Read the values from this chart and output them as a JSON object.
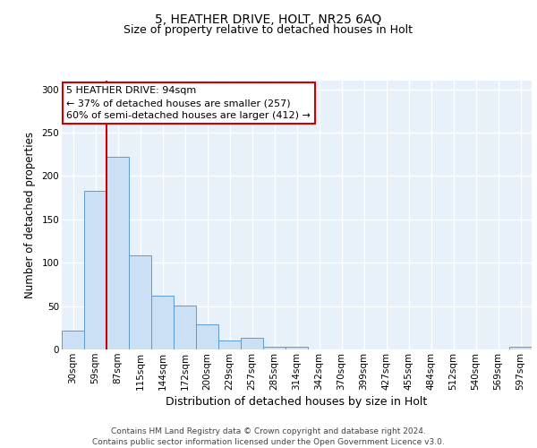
{
  "title1": "5, HEATHER DRIVE, HOLT, NR25 6AQ",
  "title2": "Size of property relative to detached houses in Holt",
  "xlabel": "Distribution of detached houses by size in Holt",
  "ylabel": "Number of detached properties",
  "bar_labels": [
    "30sqm",
    "59sqm",
    "87sqm",
    "115sqm",
    "144sqm",
    "172sqm",
    "200sqm",
    "229sqm",
    "257sqm",
    "285sqm",
    "314sqm",
    "342sqm",
    "370sqm",
    "399sqm",
    "427sqm",
    "455sqm",
    "484sqm",
    "512sqm",
    "540sqm",
    "569sqm",
    "597sqm"
  ],
  "bar_values": [
    22,
    183,
    222,
    108,
    62,
    51,
    29,
    10,
    13,
    3,
    3,
    0,
    0,
    0,
    0,
    0,
    0,
    0,
    0,
    0,
    3
  ],
  "bar_color": "#cce0f5",
  "bar_edge_color": "#5b9bd5",
  "vline_x_index": 2,
  "vline_color": "#cc0000",
  "annotation_text": "5 HEATHER DRIVE: 94sqm\n← 37% of detached houses are smaller (257)\n60% of semi-detached houses are larger (412) →",
  "annotation_box_color": "white",
  "annotation_box_edge_color": "#cc0000",
  "ylim": [
    0,
    310
  ],
  "yticks": [
    0,
    50,
    100,
    150,
    200,
    250,
    300
  ],
  "background_color": "#e8f1fa",
  "footer_text": "Contains HM Land Registry data © Crown copyright and database right 2024.\nContains public sector information licensed under the Open Government Licence v3.0.",
  "title1_fontsize": 10,
  "title2_fontsize": 9,
  "xlabel_fontsize": 9,
  "ylabel_fontsize": 8.5,
  "tick_fontsize": 7.5,
  "annotation_fontsize": 8,
  "footer_fontsize": 6.5
}
